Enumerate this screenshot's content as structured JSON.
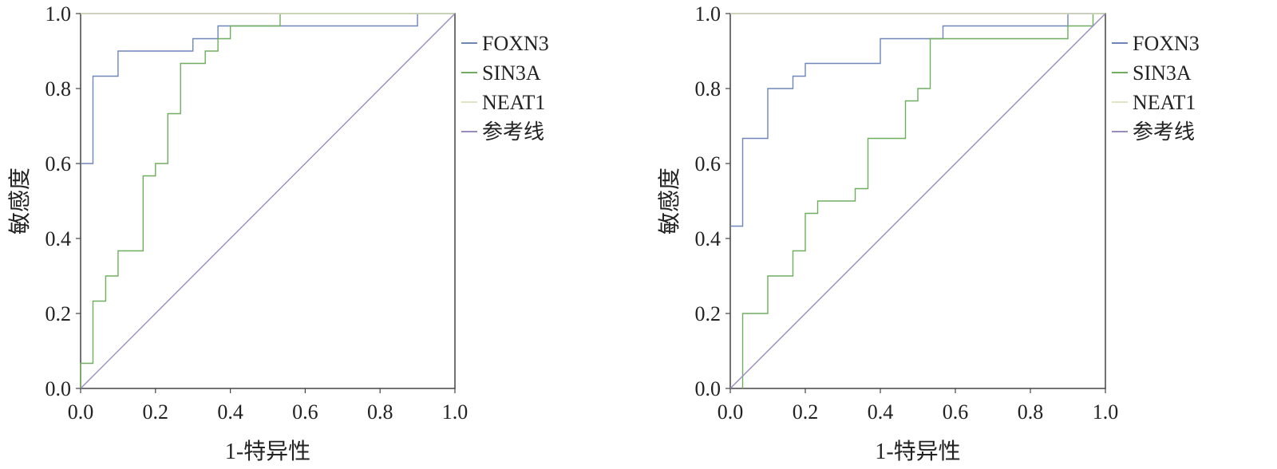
{
  "colors": {
    "FOXN3": "#6f86b8",
    "SIN3A": "#6fae5e",
    "NEAT1": "#dfe3c7",
    "reference": "#9a8bbf",
    "axis": "#444444"
  },
  "chart_data": [
    {
      "type": "line",
      "title": "",
      "xlabel": "1-特异性",
      "ylabel": "敏感度",
      "xlim": [
        0,
        1
      ],
      "ylim": [
        0,
        1
      ],
      "xticks": [
        "0.0",
        "0.2",
        "0.4",
        "0.6",
        "0.8",
        "1.0"
      ],
      "yticks": [
        "0.0",
        "0.2",
        "0.4",
        "0.6",
        "0.8",
        "1.0"
      ],
      "grid": false,
      "legend_position": "right",
      "series": [
        {
          "name": "FOXN3",
          "color_key": "FOXN3",
          "x": [
            0,
            0.033,
            0.033,
            0.1,
            0.1,
            0.3,
            0.3,
            0.367,
            0.367,
            0.533,
            0.533,
            0.9,
            0.9,
            1.0
          ],
          "y": [
            0.6,
            0.6,
            0.833,
            0.833,
            0.9,
            0.9,
            0.933,
            0.933,
            0.967,
            0.967,
            0.967,
            0.967,
            1.0,
            1.0
          ]
        },
        {
          "name": "SIN3A",
          "color_key": "SIN3A",
          "x": [
            0,
            0,
            0.033,
            0.033,
            0.067,
            0.067,
            0.1,
            0.1,
            0.167,
            0.167,
            0.2,
            0.2,
            0.233,
            0.233,
            0.267,
            0.267,
            0.333,
            0.333,
            0.367,
            0.367,
            0.4,
            0.4,
            0.533,
            0.533,
            1.0
          ],
          "y": [
            0,
            0.067,
            0.067,
            0.233,
            0.233,
            0.3,
            0.3,
            0.367,
            0.367,
            0.567,
            0.567,
            0.6,
            0.6,
            0.733,
            0.733,
            0.867,
            0.867,
            0.9,
            0.9,
            0.933,
            0.933,
            0.967,
            0.967,
            1.0,
            1.0
          ]
        },
        {
          "name": "NEAT1",
          "color_key": "NEAT1",
          "x": [
            0,
            1.0
          ],
          "y": [
            1.0,
            1.0
          ]
        },
        {
          "name": "参考线",
          "color_key": "reference",
          "x": [
            0,
            1
          ],
          "y": [
            0,
            1
          ]
        }
      ]
    },
    {
      "type": "line",
      "title": "",
      "xlabel": "1-特异性",
      "ylabel": "敏感度",
      "xlim": [
        0,
        1
      ],
      "ylim": [
        0,
        1
      ],
      "xticks": [
        "0.0",
        "0.2",
        "0.4",
        "0.6",
        "0.8",
        "1.0"
      ],
      "yticks": [
        "0.0",
        "0.2",
        "0.4",
        "0.6",
        "0.8",
        "1.0"
      ],
      "grid": false,
      "legend_position": "right",
      "series": [
        {
          "name": "FOXN3",
          "color_key": "FOXN3",
          "x": [
            0,
            0.033,
            0.033,
            0.1,
            0.1,
            0.167,
            0.167,
            0.2,
            0.2,
            0.4,
            0.4,
            0.567,
            0.567,
            0.9,
            0.9,
            1.0
          ],
          "y": [
            0.433,
            0.433,
            0.667,
            0.667,
            0.8,
            0.8,
            0.833,
            0.833,
            0.867,
            0.867,
            0.933,
            0.933,
            0.967,
            0.967,
            1.0,
            1.0
          ]
        },
        {
          "name": "SIN3A",
          "color_key": "SIN3A",
          "x": [
            0.033,
            0.033,
            0.1,
            0.1,
            0.167,
            0.167,
            0.2,
            0.2,
            0.233,
            0.233,
            0.333,
            0.333,
            0.367,
            0.367,
            0.467,
            0.467,
            0.5,
            0.5,
            0.533,
            0.533,
            0.9,
            0.9,
            0.967,
            0.967,
            1.0
          ],
          "y": [
            0,
            0.2,
            0.2,
            0.3,
            0.3,
            0.367,
            0.367,
            0.467,
            0.467,
            0.5,
            0.5,
            0.533,
            0.533,
            0.667,
            0.667,
            0.767,
            0.767,
            0.8,
            0.8,
            0.933,
            0.933,
            0.967,
            0.967,
            1.0,
            1.0
          ]
        },
        {
          "name": "NEAT1",
          "color_key": "NEAT1",
          "x": [
            0,
            1.0
          ],
          "y": [
            1.0,
            1.0
          ]
        },
        {
          "name": "参考线",
          "color_key": "reference",
          "x": [
            0,
            1
          ],
          "y": [
            0,
            1
          ]
        }
      ]
    }
  ]
}
